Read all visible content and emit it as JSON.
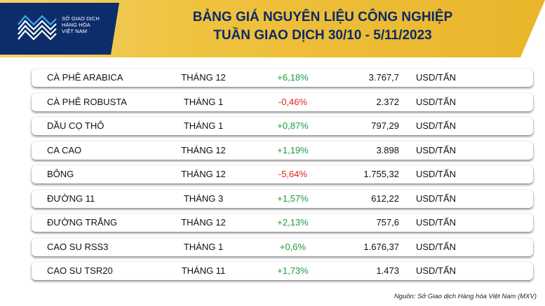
{
  "logo": {
    "lines": [
      "SỞ GIAO DỊCH",
      "HÀNG HÓA",
      "VIỆT NAM"
    ]
  },
  "title": {
    "line1": "BẢNG GIÁ NGUYÊN LIỆU CÔNG NGHIỆP",
    "line2": "TUẦN GIAO DỊCH 30/10 - 5/11/2023"
  },
  "colors": {
    "positive": "#1d9a3a",
    "negative": "#e0241b",
    "title": "#0b2a66",
    "logo_bg": "#0d2d6a",
    "header_gold": "#eab52b"
  },
  "rows": [
    {
      "name": "CÀ PHÊ ARABICA",
      "month": "THÁNG 12",
      "change": "+6,18%",
      "direction": "up",
      "price": "3.767,7",
      "unit": "USD/TẤN"
    },
    {
      "name": "CÀ PHÊ ROBUSTA",
      "month": "THÁNG 1",
      "change": "-0,46%",
      "direction": "down",
      "price": "2.372",
      "unit": "USD/TẤN"
    },
    {
      "name": "DẦU CỌ THÔ",
      "month": "THÁNG 1",
      "change": "+0,87%",
      "direction": "up",
      "price": "797,29",
      "unit": "USD/TẤN"
    },
    {
      "name": "CA CAO",
      "month": "THÁNG 12",
      "change": "+1,19%",
      "direction": "up",
      "price": "3.898",
      "unit": "USD/TẤN"
    },
    {
      "name": "BÔNG",
      "month": "THÁNG 12",
      "change": "-5,64%",
      "direction": "down",
      "price": "1.755,32",
      "unit": "USD/TẤN"
    },
    {
      "name": "ĐƯỜNG 11",
      "month": "THÁNG 3",
      "change": "+1,57%",
      "direction": "up",
      "price": "612,22",
      "unit": "USD/TẤN"
    },
    {
      "name": "ĐƯỜNG TRẮNG",
      "month": "THÁNG 12",
      "change": "+2,13%",
      "direction": "up",
      "price": "757,6",
      "unit": "USD/TẤN"
    },
    {
      "name": "CAO SU RSS3",
      "month": "THÁNG 1",
      "change": "+0,6%",
      "direction": "up",
      "price": "1.676,37",
      "unit": "USD/TẤN"
    },
    {
      "name": "CAO SU TSR20",
      "month": "THÁNG 11",
      "change": "+1,73%",
      "direction": "up",
      "price": "1.473",
      "unit": "USD/TẤN"
    }
  ],
  "source": "Nguồn: Sở Giao dịch Hàng hóa Việt Nam (MXV)"
}
